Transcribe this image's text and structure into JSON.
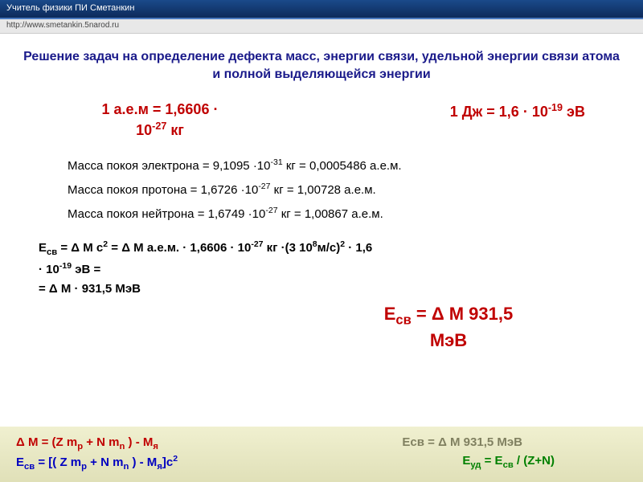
{
  "topbar": {
    "text": "Учитель физики ПИ Сметанкин"
  },
  "urlbar": {
    "text": "http://www.smetankin.5narod.ru"
  },
  "title": {
    "text": "Решение задач на определение дефекта масс, энергии связи, удельной энергии связи атома и полной выделяющейся энергии"
  },
  "conv": {
    "amu_line1": "1 а.е.м = 1,6606 ·",
    "amu_line2_prefix": "10",
    "amu_line2_exp": "-27",
    "amu_line2_suffix": " кг",
    "joule_prefix": "1 Дж = 1,6 · 10",
    "joule_exp": "-19",
    "joule_suffix": " эВ"
  },
  "masses": {
    "electron_prefix": "Масса покоя электрона = 9,1095 ·10",
    "electron_exp": "-31",
    "electron_suffix": " кг = 0,0005486 а.е.м.",
    "proton_prefix": "Масса покоя протона    = 1,6726 ·10",
    "proton_exp": "-27",
    "proton_suffix": " кг = 1,00728 а.е.м.",
    "neutron_prefix": "Масса покоя нейтрона  = 1,6749 ·10",
    "neutron_exp": "-27",
    "neutron_suffix": " кг = 1,00867 а.е.м."
  },
  "deriv": {
    "l1a": "Е",
    "l1a_sub": "св",
    "l1b": " = Δ М с",
    "l1b_sup": "2",
    "l1c": " = Δ М а.е.м. · 1,6606 · 10",
    "l1c_sup": "-27",
    "l1d": " кг ·(3 10",
    "l1d_supA": "8",
    "l1e": "м/с)",
    "l1e_sup": "2",
    "l1f": " · 1,6",
    "l2a": "· 10",
    "l2a_sup": "-19",
    "l2b": " эВ =",
    "l3": "= Δ М · 931,5 МэВ"
  },
  "result": {
    "prefix": "Е",
    "sub": "св",
    "rest": "  = Δ М 931,5",
    "unit": "МэВ"
  },
  "footer": {
    "dm_prefix": "Δ М = (Z m",
    "dm_sub1": "p",
    "dm_mid": " + N m",
    "dm_sub2": "n",
    "dm_suffix": " ) - М",
    "dm_sub3": "я",
    "esv_prefix": "Есв  = Δ М 931,5 МэВ",
    "ecv_prefix": "Е",
    "ecv_sub": "св",
    "ecv_a": " = [( Z m",
    "ecv_sub1": "p",
    "ecv_b": " + N m",
    "ecv_sub2": "n",
    "ecv_c": " ) - М",
    "ecv_sub3": "я",
    "ecv_d": "]c",
    "ecv_sup": "2",
    "eud_prefix": "Е",
    "eud_sub1": "уд",
    "eud_mid": " = Е",
    "eud_sub2": "св",
    "eud_suffix": " / (Z+N)"
  }
}
